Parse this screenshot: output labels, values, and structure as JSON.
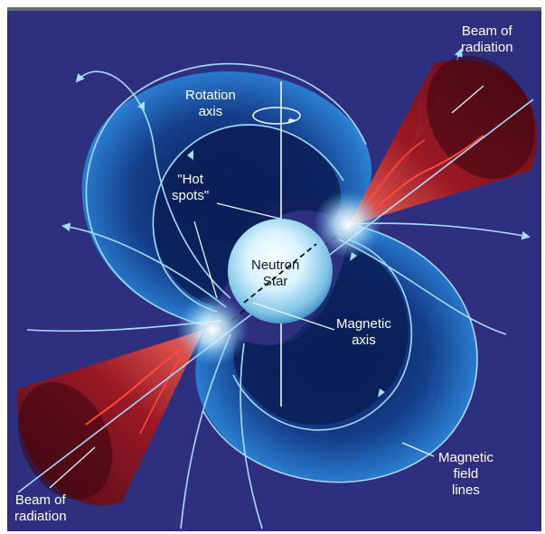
{
  "labels": {
    "beam_top": [
      "Beam of",
      "radiation"
    ],
    "rotation_axis": [
      "Rotation",
      "axis"
    ],
    "hot_spots": [
      "\"Hot",
      "spots\""
    ],
    "neutron_star": [
      "Neutron",
      "Star"
    ],
    "magnetic_axis": [
      "Magnetic",
      "axis"
    ],
    "beam_bottom": [
      "Beam of",
      "radiation"
    ],
    "field_lines": [
      "Magnetic",
      "field",
      "lines"
    ]
  },
  "colors": {
    "background": "#2e2f7e",
    "field_lobe": "#1f6fc0",
    "beam": "#8e1420",
    "field_line": "#a8dcff",
    "star": "#cfeeff"
  }
}
